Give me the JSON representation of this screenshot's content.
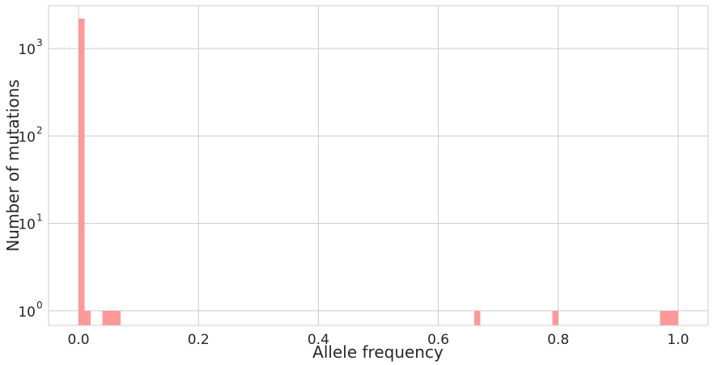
{
  "chart_data": {
    "type": "bar",
    "title": "",
    "xlabel": "Allele frequency",
    "ylabel": "Number of mutations",
    "y_scale": "log",
    "xlim": [
      -0.05,
      1.05
    ],
    "ylim": [
      0.68,
      3100
    ],
    "x_ticks": [
      {
        "value": 0.0,
        "label": "0.0"
      },
      {
        "value": 0.2,
        "label": "0.2"
      },
      {
        "value": 0.4,
        "label": "0.4"
      },
      {
        "value": 0.6,
        "label": "0.6"
      },
      {
        "value": 0.8,
        "label": "0.8"
      },
      {
        "value": 1.0,
        "label": "1.0"
      }
    ],
    "y_ticks": [
      {
        "value": 1,
        "base": "10",
        "exp": "0"
      },
      {
        "value": 10,
        "base": "10",
        "exp": "1"
      },
      {
        "value": 100,
        "base": "10",
        "exp": "2"
      },
      {
        "value": 1000,
        "base": "10",
        "exp": "3"
      }
    ],
    "bin_width": 0.01,
    "bins": [
      {
        "x0": 0.0,
        "x1": 0.01,
        "count": 2200
      },
      {
        "x0": 0.01,
        "x1": 0.02,
        "count": 1
      },
      {
        "x0": 0.04,
        "x1": 0.05,
        "count": 1
      },
      {
        "x0": 0.05,
        "x1": 0.06,
        "count": 1
      },
      {
        "x0": 0.06,
        "x1": 0.07,
        "count": 1
      },
      {
        "x0": 0.66,
        "x1": 0.67,
        "count": 1
      },
      {
        "x0": 0.79,
        "x1": 0.8,
        "count": 1
      },
      {
        "x0": 0.97,
        "x1": 0.98,
        "count": 1
      },
      {
        "x0": 0.98,
        "x1": 0.99,
        "count": 1
      },
      {
        "x0": 0.99,
        "x1": 1.0,
        "count": 1
      }
    ],
    "grid": true,
    "colors": {
      "bar": "#ff9999",
      "grid": "#cccccc",
      "frame": "#cccccc",
      "text": "#262626"
    }
  }
}
